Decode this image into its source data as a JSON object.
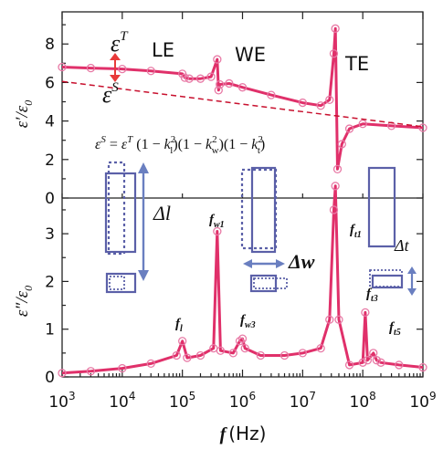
{
  "chart_data": [
    {
      "panel": "top",
      "type": "line",
      "x_scale": "log",
      "xlim": [
        1000,
        1000000000
      ],
      "ylim": [
        0,
        9
      ],
      "yticks": [
        0,
        2,
        4,
        6,
        8
      ],
      "ylabel": {
        "main": "ε′/ε",
        "sub": "0"
      },
      "region_labels": [
        "LE",
        "WE",
        "TE"
      ],
      "series": [
        {
          "style": "solid",
          "color": "#e0306a",
          "x": [
            1000,
            3000,
            10000,
            30000,
            100000,
            110000,
            130000,
            200000,
            300000,
            380000,
            400000,
            420000,
            600000,
            1000000,
            3000000,
            10000000,
            20000000,
            28000000,
            33000000,
            35000000,
            38000000,
            45000000,
            60000000,
            100000000,
            300000000,
            1000000000
          ],
          "y": [
            6.8,
            6.75,
            6.7,
            6.6,
            6.45,
            6.25,
            6.2,
            6.2,
            6.3,
            7.2,
            5.6,
            5.9,
            5.95,
            5.75,
            5.35,
            4.95,
            4.8,
            5.1,
            7.5,
            8.8,
            1.5,
            2.8,
            3.6,
            3.85,
            3.75,
            3.65
          ]
        },
        {
          "style": "dashed",
          "color": "#c8102e",
          "x": [
            1000,
            1000000000
          ],
          "y": [
            6.05,
            3.7
          ]
        }
      ],
      "annotations": {
        "eps_T": {
          "base": "ε",
          "sup": "T"
        },
        "eps_S": {
          "base": "ε",
          "sup": "S"
        },
        "formula": {
          "lhs": "ε",
          "lhs_sup": "S",
          "eq": " = ",
          "rhs": "ε",
          "rhs_sup": "T",
          "t1a": " (1 − ",
          "k1": "k",
          "k1_sub": "l",
          "sq": "2",
          "t2a": ")(1 − ",
          "k2": "k",
          "k2_sub": "w",
          "t3a": ")(1 − ",
          "k3": "k",
          "k3_sub": "t",
          "close": ")"
        }
      }
    },
    {
      "panel": "bottom",
      "type": "line",
      "x_scale": "log",
      "xlim": [
        1000,
        1000000000
      ],
      "ylim": [
        0,
        4
      ],
      "yticks": [
        0,
        1,
        2,
        3
      ],
      "ylabel": {
        "main": "ε″/ε",
        "sub": "0"
      },
      "xlabel": {
        "main": "f",
        "unit": "(Hz)"
      },
      "xticks": [
        {
          "base": "10",
          "exp": "3"
        },
        {
          "base": "10",
          "exp": "4"
        },
        {
          "base": "10",
          "exp": "5"
        },
        {
          "base": "10",
          "exp": "6"
        },
        {
          "base": "10",
          "exp": "7"
        },
        {
          "base": "10",
          "exp": "8"
        },
        {
          "base": "10",
          "exp": "9"
        }
      ],
      "series": [
        {
          "style": "solid",
          "color": "#e0306a",
          "x": [
            1000,
            3000,
            10000,
            30000,
            80000,
            100000,
            120000,
            200000,
            330000,
            380000,
            430000,
            700000,
            900000,
            1000000,
            1100000,
            2000000,
            5000000,
            10000000,
            20000000,
            28000000,
            33000000,
            35000000,
            40000000,
            60000000,
            100000000,
            110000000,
            120000000,
            150000000,
            170000000,
            200000000,
            400000000,
            1000000000
          ],
          "y": [
            0.08,
            0.12,
            0.18,
            0.28,
            0.45,
            0.75,
            0.4,
            0.45,
            0.6,
            3.05,
            0.55,
            0.5,
            0.75,
            0.8,
            0.6,
            0.45,
            0.45,
            0.5,
            0.6,
            1.2,
            3.5,
            4.0,
            1.2,
            0.25,
            0.3,
            1.35,
            0.35,
            0.5,
            0.35,
            0.3,
            0.25,
            0.2
          ]
        }
      ],
      "annotations": {
        "peaks": [
          {
            "label": "f",
            "sub": "l"
          },
          {
            "label": "f",
            "sub": "w1"
          },
          {
            "label": "f",
            "sub": "w3"
          },
          {
            "label": "f",
            "sub": "t1"
          },
          {
            "label": "f",
            "sub": "t3"
          },
          {
            "label": "f",
            "sub": "t5"
          }
        ],
        "delta_l": "Δl",
        "delta_w": "Δw",
        "delta_t": "Δt"
      }
    }
  ],
  "colors": {
    "curve": "#e0306a",
    "marker": "#e87aa6",
    "dashed": "#c8102e",
    "arrow_red": "#e83a3a",
    "schematic": "#5b60a8",
    "arrow_blue": "#6a7fc0"
  }
}
